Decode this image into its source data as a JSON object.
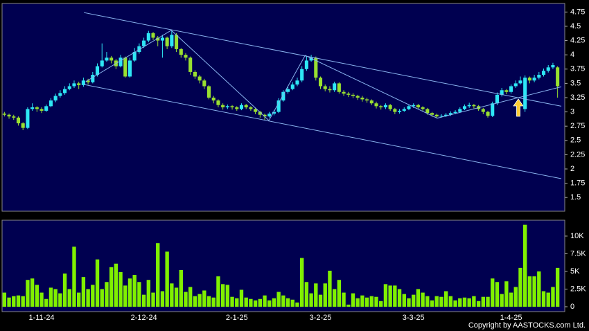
{
  "chart_data": {
    "type": "candlestick",
    "up_color": "#2ee6f5",
    "down_color": "#99e030",
    "line_color": "#8ab4f0",
    "categories": [
      null,
      null,
      null,
      null,
      null,
      null,
      null,
      null,
      "1-11-24",
      null,
      null,
      null,
      null,
      null,
      null,
      null,
      null,
      null,
      null,
      null,
      null,
      null,
      null,
      null,
      null,
      null,
      null,
      null,
      null,
      null,
      "2-12-24",
      null,
      null,
      null,
      null,
      null,
      null,
      null,
      null,
      null,
      null,
      null,
      null,
      null,
      null,
      null,
      null,
      null,
      null,
      null,
      "2-1-25",
      null,
      null,
      null,
      null,
      null,
      null,
      null,
      null,
      null,
      null,
      null,
      null,
      null,
      null,
      null,
      null,
      null,
      "3-2-25",
      null,
      null,
      null,
      null,
      null,
      null,
      null,
      null,
      null,
      null,
      null,
      null,
      null,
      null,
      null,
      null,
      null,
      null,
      null,
      "3-3-25",
      null,
      null,
      null,
      null,
      null,
      null,
      null,
      null,
      null,
      null,
      null,
      null,
      null,
      null,
      null,
      null,
      null,
      null,
      null,
      null,
      "1-4-25",
      null,
      null,
      null,
      null,
      null,
      null,
      null,
      null,
      null,
      null
    ],
    "open": [
      2.97,
      2.95,
      2.92,
      2.9,
      2.8,
      2.72,
      3.05,
      3.08,
      3.05,
      3.02,
      3.1,
      3.2,
      3.28,
      3.33,
      3.4,
      3.45,
      3.5,
      3.47,
      3.55,
      3.52,
      3.65,
      3.8,
      3.9,
      3.95,
      3.9,
      3.8,
      3.95,
      3.62,
      3.9,
      4.05,
      4.15,
      4.25,
      4.38,
      4.3,
      4.25,
      4.3,
      4.15,
      4.35,
      4.1,
      4.0,
      3.95,
      3.7,
      3.62,
      3.55,
      3.45,
      3.25,
      3.2,
      3.12,
      3.08,
      3.1,
      3.08,
      3.05,
      3.12,
      3.08,
      3.05,
      3.0,
      2.95,
      2.92,
      2.97,
      3.0,
      3.2,
      3.35,
      3.4,
      3.48,
      3.55,
      3.75,
      3.9,
      3.95,
      3.6,
      3.45,
      3.4,
      3.38,
      3.5,
      3.35,
      3.32,
      3.3,
      3.28,
      3.25,
      3.22,
      3.2,
      3.15,
      3.1,
      3.08,
      3.12,
      3.05,
      3.0,
      3.02,
      3.05,
      3.1,
      3.12,
      3.08,
      3.05,
      2.98,
      2.95,
      2.92,
      2.93,
      2.95,
      2.98,
      3.0,
      3.05,
      3.1,
      3.12,
      3.1,
      3.05,
      3.0,
      2.93,
      3.15,
      3.3,
      3.38,
      3.35,
      3.45,
      3.5,
      3.05,
      3.6,
      3.55,
      3.6,
      3.65,
      3.72,
      3.78,
      3.78
    ],
    "high": [
      3.0,
      2.97,
      2.95,
      2.92,
      2.82,
      3.08,
      3.15,
      3.1,
      3.08,
      3.13,
      3.24,
      3.32,
      3.38,
      3.45,
      3.5,
      3.55,
      3.53,
      3.6,
      3.58,
      3.7,
      3.85,
      4.2,
      4.05,
      3.98,
      3.93,
      4.0,
      3.97,
      3.95,
      4.12,
      4.2,
      4.3,
      4.42,
      4.4,
      4.33,
      4.35,
      4.32,
      4.42,
      4.38,
      4.12,
      4.03,
      3.97,
      3.73,
      3.65,
      3.58,
      3.47,
      3.28,
      3.22,
      3.15,
      3.13,
      3.12,
      3.1,
      3.15,
      3.14,
      3.1,
      3.07,
      3.02,
      2.97,
      3.0,
      3.03,
      3.24,
      3.38,
      3.44,
      3.52,
      3.6,
      3.8,
      3.98,
      4.0,
      3.97,
      3.62,
      3.48,
      3.45,
      3.53,
      3.52,
      3.38,
      3.35,
      3.33,
      3.3,
      3.28,
      3.25,
      3.22,
      3.18,
      3.12,
      3.15,
      3.14,
      3.07,
      3.05,
      3.08,
      3.13,
      3.15,
      3.14,
      3.1,
      3.07,
      3.0,
      2.97,
      2.96,
      2.98,
      3.01,
      3.03,
      3.08,
      3.13,
      3.16,
      3.14,
      3.12,
      3.07,
      3.02,
      3.18,
      3.34,
      3.42,
      3.4,
      3.48,
      3.55,
      3.62,
      3.64,
      3.62,
      3.65,
      3.7,
      3.76,
      3.82,
      3.86,
      3.8
    ],
    "low": [
      2.92,
      2.88,
      2.86,
      2.76,
      2.68,
      2.7,
      3.02,
      3.0,
      2.98,
      3.0,
      3.08,
      3.17,
      3.25,
      3.3,
      3.38,
      3.42,
      3.4,
      3.44,
      3.48,
      3.5,
      3.62,
      3.78,
      3.88,
      3.85,
      3.75,
      3.78,
      3.6,
      3.6,
      3.88,
      4.02,
      4.12,
      4.22,
      4.26,
      4.15,
      3.95,
      4.1,
      4.12,
      4.05,
      3.95,
      3.9,
      3.65,
      3.58,
      3.5,
      3.4,
      3.22,
      3.15,
      3.08,
      3.04,
      3.05,
      3.04,
      3.02,
      3.03,
      3.05,
      3.02,
      2.96,
      2.9,
      2.86,
      2.9,
      2.94,
      2.98,
      3.18,
      3.32,
      3.38,
      3.45,
      3.52,
      3.72,
      3.88,
      3.55,
      3.4,
      3.36,
      3.34,
      3.35,
      3.32,
      3.28,
      3.26,
      3.24,
      3.21,
      3.18,
      3.16,
      3.12,
      3.06,
      3.04,
      3.05,
      3.02,
      2.96,
      2.97,
      3.0,
      3.03,
      3.07,
      3.05,
      3.01,
      2.95,
      2.91,
      2.89,
      2.9,
      2.91,
      2.93,
      2.96,
      2.98,
      3.03,
      3.07,
      3.06,
      3.02,
      2.96,
      2.9,
      2.91,
      3.12,
      3.27,
      3.31,
      3.32,
      3.42,
      3.48,
      3.0,
      3.5,
      3.52,
      3.57,
      3.62,
      3.69,
      3.75,
      3.25
    ],
    "close": [
      2.95,
      2.92,
      2.9,
      2.8,
      2.72,
      3.05,
      3.08,
      3.05,
      3.02,
      3.1,
      3.2,
      3.28,
      3.33,
      3.4,
      3.45,
      3.5,
      3.47,
      3.55,
      3.52,
      3.65,
      3.8,
      3.9,
      3.95,
      3.9,
      3.8,
      3.95,
      3.62,
      3.9,
      4.05,
      4.15,
      4.25,
      4.38,
      4.3,
      4.25,
      4.3,
      4.15,
      4.35,
      4.1,
      4.0,
      3.95,
      3.7,
      3.62,
      3.55,
      3.45,
      3.25,
      3.2,
      3.12,
      3.08,
      3.1,
      3.08,
      3.05,
      3.12,
      3.08,
      3.05,
      3.0,
      2.95,
      2.92,
      2.97,
      3.0,
      3.2,
      3.35,
      3.4,
      3.48,
      3.55,
      3.75,
      3.9,
      3.95,
      3.6,
      3.45,
      3.4,
      3.38,
      3.5,
      3.35,
      3.32,
      3.3,
      3.28,
      3.25,
      3.22,
      3.2,
      3.15,
      3.1,
      3.08,
      3.12,
      3.05,
      3.0,
      3.02,
      3.05,
      3.1,
      3.12,
      3.08,
      3.05,
      2.98,
      2.95,
      2.92,
      2.93,
      2.95,
      2.98,
      3.0,
      3.05,
      3.1,
      3.12,
      3.1,
      3.05,
      3.0,
      2.93,
      3.15,
      3.3,
      3.38,
      3.35,
      3.45,
      3.5,
      3.55,
      3.6,
      3.55,
      3.6,
      3.65,
      3.72,
      3.78,
      3.82,
      3.45
    ],
    "ylim": [
      1.26,
      4.9
    ],
    "yticks": [
      4.75,
      4.5,
      4.25,
      4,
      3.75,
      3.5,
      3.25,
      3,
      2.75,
      2.5,
      2.25,
      2,
      1.75,
      1.5
    ],
    "lines": [
      {
        "x": [
          17.1,
          119.8
        ],
        "y": [
          4.74,
          3.1
        ]
      },
      {
        "x": [
          17.1,
          119.8
        ],
        "y": [
          3.48,
          1.83
        ]
      },
      {
        "x": [
          17.5,
          35.9,
          56.9,
          64.7,
          93.1,
          119.8
        ],
        "y": [
          3.53,
          4.43,
          2.85,
          3.99,
          2.89,
          3.44
        ]
      }
    ],
    "volume": {
      "color": "#80f000",
      "values": [
        2000,
        1300,
        1500,
        1600,
        1500,
        3800,
        4000,
        3100,
        2000,
        1100,
        2700,
        2500,
        1900,
        4700,
        2500,
        8500,
        2000,
        4200,
        2500,
        3100,
        6700,
        2500,
        3500,
        5600,
        6100,
        4900,
        3000,
        4000,
        4500,
        3500,
        1700,
        3800,
        2000,
        9000,
        2200,
        7800,
        3300,
        2700,
        5200,
        2100,
        2800,
        1500,
        1800,
        2300,
        1500,
        1300,
        4300,
        3200,
        3100,
        1400,
        1200,
        2400,
        1300,
        1100,
        900,
        1100,
        1600,
        900,
        1200,
        2100,
        1600,
        1200,
        1000,
        600,
        6900,
        3500,
        1900,
        3300,
        1700,
        3300,
        5100,
        2500,
        3800,
        2000,
        300,
        1900,
        1200,
        1600,
        1300,
        1500,
        1400,
        800,
        3200,
        3000,
        3000,
        2500,
        1800,
        1200,
        1700,
        2500,
        2000,
        1500,
        900,
        1500,
        1400,
        2200,
        1500,
        900,
        1200,
        1300,
        1200,
        1500,
        800,
        1400,
        1400,
        4000,
        3500,
        1800,
        3600,
        2000,
        2800,
        5500,
        11600,
        4300,
        4300,
        5000,
        2200,
        2000,
        2800,
        5500
      ],
      "ylim": [
        -690,
        12250
      ],
      "yticks": [
        {
          "value": 10000,
          "label": "10K"
        },
        {
          "value": 7500,
          "label": "7.5K"
        },
        {
          "value": 5000,
          "label": "5K"
        },
        {
          "value": 2500,
          "label": "2.5K"
        },
        0
      ]
    },
    "copyright": "Copyright by AASTOCKS.com Ltd."
  }
}
